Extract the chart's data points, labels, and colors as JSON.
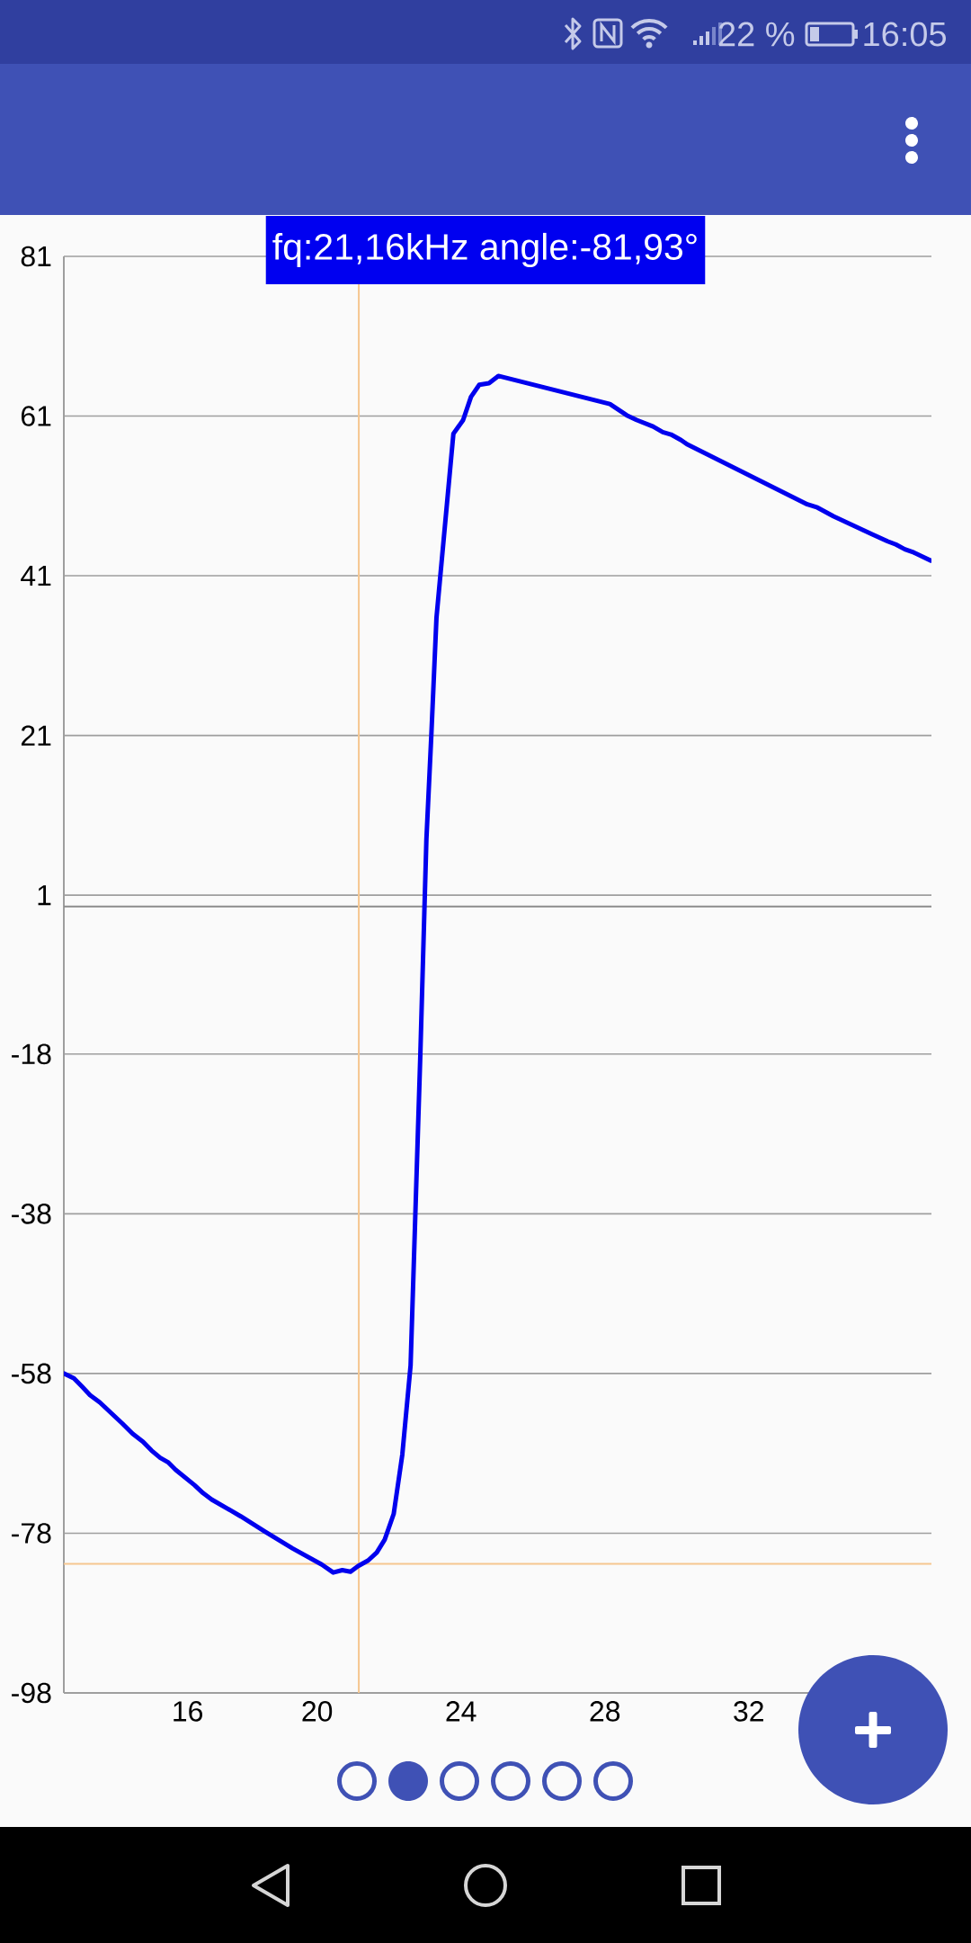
{
  "chart_data": {
    "type": "line",
    "annotations": [
      "fq:21,16kHz angle:-81,93°",
      "22 %",
      "16:05"
    ],
    "x": [
      12.97,
      13.24,
      13.48,
      13.69,
      13.96,
      14.58,
      14.87,
      15.16,
      15.4,
      15.64,
      15.87,
      16.07,
      16.59,
      16.83,
      17.07,
      17.88,
      18.55,
      19.32,
      20.13,
      20.45,
      20.7,
      20.93,
      21.14,
      21.42,
      21.66,
      21.88,
      22.13,
      22.37,
      22.6,
      22.72,
      22.87,
      23.04,
      23.18,
      23.32,
      23.79,
      24.06,
      24.28,
      24.51,
      24.78,
      25.04,
      28.14,
      28.61,
      28.89,
      29.34,
      29.61,
      29.84,
      30.12,
      30.28,
      33.63,
      33.91,
      34.36,
      35.42,
      35.86,
      36.09,
      36.34,
      36.59,
      37.06
    ],
    "series": [
      {
        "color": "#0000ee",
        "values": [
          -58.2,
          -58.8,
          -59.9,
          -60.9,
          -61.8,
          -64.4,
          -65.7,
          -66.7,
          -67.8,
          -68.7,
          -69.3,
          -70.2,
          -72.1,
          -73.1,
          -73.9,
          -76.0,
          -77.9,
          -80.0,
          -82.0,
          -83.0,
          -82.7,
          -82.9,
          -82.2,
          -81.5,
          -80.5,
          -78.9,
          -75.7,
          -68.3,
          -57.2,
          -40.1,
          -18.6,
          8.4,
          21.7,
          36.0,
          58.9,
          60.6,
          63.5,
          65.0,
          65.2,
          66.1,
          62.6,
          61.2,
          60.6,
          59.8,
          59.1,
          58.8,
          58.1,
          57.6,
          50.1,
          49.7,
          48.6,
          46.4,
          45.5,
          45.1,
          44.5,
          44.1,
          43.1
        ]
      }
    ],
    "xlim": [
      12.96,
      37.08
    ],
    "ylim": [
      -98,
      81
    ],
    "xticks": [
      {
        "value": 16.4,
        "label": "16"
      },
      20,
      24,
      28,
      32
    ],
    "yticks": [
      -98,
      {
        "value": -78.1,
        "label": "-78"
      },
      {
        "value": -58.2,
        "label": "-58"
      },
      {
        "value": -38.3,
        "label": "-38"
      },
      {
        "value": -18.4,
        "label": "-18"
      },
      {
        "value": 1.4,
        "label": "1"
      },
      {
        "value": 21.3,
        "label": "21"
      },
      {
        "value": 41.2,
        "label": "41"
      },
      {
        "value": 61.1,
        "label": "61"
      },
      81
    ],
    "grid": "y",
    "ref_lines": [
      {
        "axis": "y",
        "value": 0,
        "color": "#8c8c8c"
      },
      {
        "axis": "x",
        "value": 21.16,
        "color": "#f5c690"
      },
      {
        "axis": "y",
        "value": -81.93,
        "color": "#f5c690"
      }
    ]
  }
}
